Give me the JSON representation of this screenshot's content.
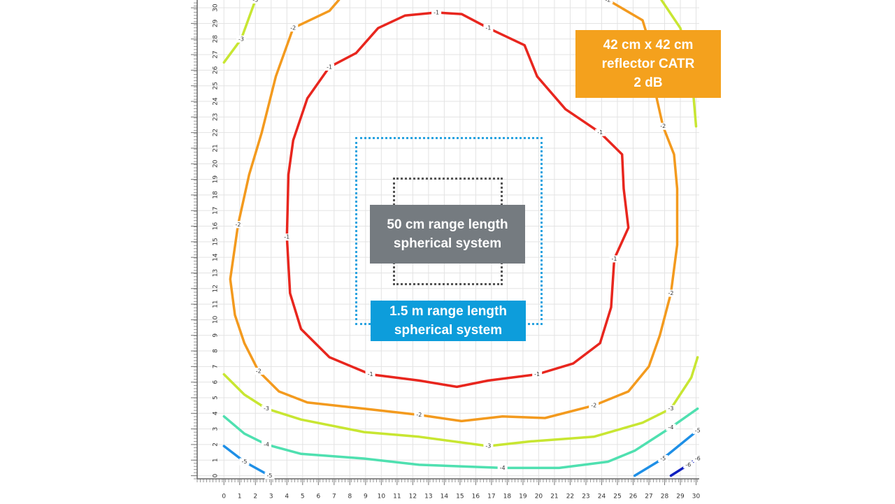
{
  "chart_data": {
    "type": "contour",
    "xlim": [
      -1.7,
      30.2
    ],
    "ylim": [
      -0.2,
      30.5
    ],
    "xticks": [
      0,
      1,
      2,
      3,
      4,
      5,
      6,
      7,
      8,
      9,
      10,
      11,
      12,
      13,
      14,
      15,
      16,
      17,
      18,
      19,
      20,
      21,
      22,
      23,
      24,
      25,
      26,
      27,
      28,
      29,
      30
    ],
    "yticks": [
      0,
      1,
      2,
      3,
      4,
      5,
      6,
      7,
      8,
      9,
      10,
      11,
      12,
      13,
      14,
      15,
      16,
      17,
      18,
      19,
      20,
      21,
      22,
      23,
      24,
      25,
      26,
      27,
      28,
      29,
      30
    ],
    "grid": true,
    "contours": [
      {
        "level": -1,
        "color": "#e8261e",
        "pieces": [
          {
            "x": [
              13.5,
              15.1,
              16.8,
              19.1,
              19.9,
              21.7,
              23.9,
              25.3,
              25.4,
              25.7,
              24.8,
              24.6,
              23.9,
              22.2,
              19.9,
              16.8,
              14.8,
              12.4,
              9.3,
              6.7,
              4.9,
              4.2,
              4.0,
              4.1,
              4.4,
              5.3,
              6.7,
              8.4,
              9.8,
              11.5,
              13.5
            ],
            "y": [
              29.7,
              29.6,
              28.7,
              27.6,
              25.6,
              23.5,
              22.0,
              20.6,
              18.4,
              15.9,
              13.9,
              10.8,
              8.5,
              7.2,
              6.5,
              6.1,
              5.7,
              6.1,
              6.5,
              7.6,
              9.4,
              11.7,
              15.3,
              19.3,
              21.5,
              24.2,
              26.2,
              27.1,
              28.7,
              29.5,
              29.7
            ]
          }
        ]
      },
      {
        "level": -2,
        "color": "#f39a1e",
        "pieces": [
          {
            "x": [
              7.3,
              6.7,
              4.4,
              3.3,
              2.4,
              1.6,
              0.9,
              0.4,
              0.7,
              1.3,
              2.2,
              3.5,
              5.3,
              8.9,
              12.4,
              15.1,
              17.7,
              20.4,
              23.5,
              25.7,
              27.0,
              27.7,
              28.4,
              28.8,
              28.8,
              28.6,
              27.9,
              27.5,
              27.3,
              26.6,
              24.4
            ],
            "y": [
              30.5,
              29.8,
              28.7,
              25.6,
              22.0,
              19.3,
              16.1,
              12.6,
              10.3,
              8.5,
              6.7,
              5.4,
              4.7,
              4.3,
              3.9,
              3.5,
              3.8,
              3.7,
              4.5,
              5.4,
              7.0,
              9.0,
              11.7,
              14.8,
              18.4,
              20.6,
              22.4,
              24.2,
              26.9,
              29.2,
              30.5
            ]
          }
        ]
      },
      {
        "level": -3,
        "color": "#c8e632",
        "pieces": [
          {
            "x": [
              0.0,
              1.1,
              2.0
            ],
            "y": [
              26.5,
              28.0,
              30.5
            ]
          },
          {
            "x": [
              27.8,
              29.0,
              29.7,
              30.0
            ],
            "y": [
              30.5,
              28.7,
              26.0,
              22.4
            ]
          },
          {
            "x": [
              0.0,
              1.3,
              2.7,
              4.9,
              8.9,
              12.4,
              16.8,
              19.5,
              23.5,
              26.6,
              28.4,
              29.7,
              30.1
            ],
            "y": [
              6.5,
              5.2,
              4.3,
              3.6,
              2.8,
              2.5,
              1.9,
              2.2,
              2.5,
              3.4,
              4.3,
              6.3,
              7.6
            ]
          }
        ]
      },
      {
        "level": -4,
        "color": "#4fe0b0",
        "pieces": [
          {
            "x": [
              0.0,
              1.3,
              2.7,
              4.9,
              8.9,
              12.4,
              17.7,
              21.3,
              24.4,
              26.1,
              28.4,
              30.1
            ],
            "y": [
              3.8,
              2.7,
              2.0,
              1.4,
              1.1,
              0.7,
              0.5,
              0.5,
              0.9,
              1.6,
              3.1,
              4.3
            ]
          }
        ]
      },
      {
        "level": -5,
        "color": "#1e8fe6",
        "pieces": [
          {
            "x": [
              0.0,
              1.3,
              2.9
            ],
            "y": [
              1.9,
              0.9,
              0.0
            ]
          },
          {
            "x": [
              26.1,
              27.9,
              30.1
            ],
            "y": [
              0.0,
              1.1,
              2.9
            ]
          }
        ]
      },
      {
        "level": -6,
        "color": "#1020c0",
        "pieces": [
          {
            "x": [
              28.4,
              29.5,
              30.1
            ],
            "y": [
              0.0,
              0.7,
              1.1
            ]
          }
        ]
      }
    ],
    "annotations": [
      {
        "lines": [
          "42 cm x 42 cm",
          "reflector CATR",
          "2 dB"
        ]
      },
      {
        "lines": [
          "50 cm range length",
          "spherical system"
        ]
      },
      {
        "lines": [
          "1.5 m range length",
          "spherical system"
        ]
      }
    ]
  }
}
